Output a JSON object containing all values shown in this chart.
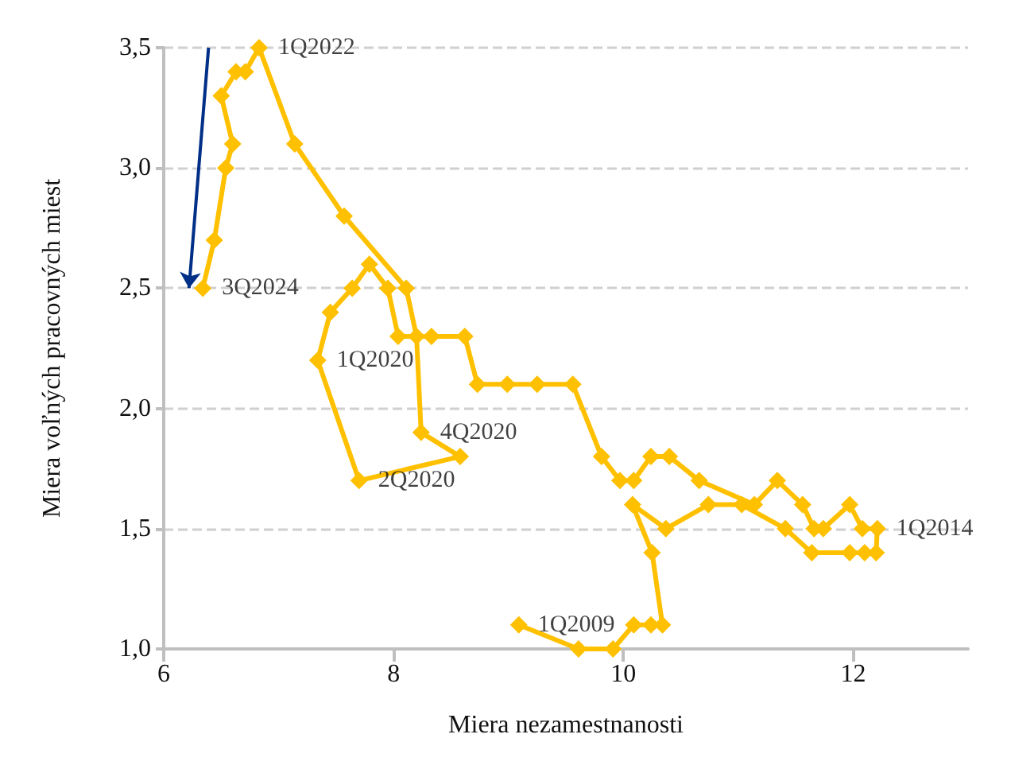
{
  "chart_data": {
    "type": "line",
    "xlabel": "Miera nezamestnanosti",
    "ylabel": "Miera voľných pracovných miest",
    "xlim": [
      6,
      13
    ],
    "xticks": [
      6,
      8,
      10,
      12
    ],
    "ylim": [
      1,
      3.5
    ],
    "yticks": [
      {
        "value": 1,
        "label": "1,0"
      },
      {
        "value": 1.5,
        "label": "1,5"
      },
      {
        "value": 2,
        "label": "2,0"
      },
      {
        "value": 2.5,
        "label": "2,5"
      },
      {
        "value": 3,
        "label": "3,0"
      },
      {
        "value": 3.5,
        "label": "3,5"
      }
    ],
    "grid": "y",
    "marker": "diamond",
    "line_style": "solid",
    "series": [
      {
        "color": "#ffc000",
        "x": [
          9.09,
          9.61,
          9.91,
          10.09,
          10.24,
          10.34,
          10.25,
          10.08,
          10.37,
          10.74,
          11.03,
          11.41,
          11.64,
          11.97,
          12.1,
          12.2,
          12.21,
          12.08,
          11.97,
          11.74,
          11.66,
          11.56,
          11.34,
          11.14,
          10.66,
          10.4,
          10.24,
          10.09,
          9.97,
          9.81,
          9.56,
          9.25,
          8.99,
          8.73,
          8.62,
          8.33,
          8.04,
          7.95,
          7.79,
          7.64,
          7.45,
          7.34,
          7.7,
          8.58,
          8.24,
          8.2,
          8.11,
          7.57,
          7.14,
          6.83,
          6.71,
          6.63,
          6.5,
          6.6,
          6.54,
          6.44,
          6.34
        ],
        "values": [
          1.1,
          1.0,
          1.0,
          1.1,
          1.1,
          1.1,
          1.4,
          1.6,
          1.5,
          1.6,
          1.6,
          1.5,
          1.4,
          1.4,
          1.4,
          1.4,
          1.5,
          1.5,
          1.6,
          1.5,
          1.5,
          1.6,
          1.7,
          1.6,
          1.7,
          1.8,
          1.8,
          1.7,
          1.7,
          1.8,
          2.1,
          2.1,
          2.1,
          2.1,
          2.3,
          2.3,
          2.3,
          2.5,
          2.6,
          2.5,
          2.4,
          2.2,
          1.7,
          1.8,
          1.9,
          2.3,
          2.5,
          2.8,
          3.1,
          3.5,
          3.4,
          3.4,
          3.3,
          3.1,
          3.0,
          2.7,
          2.5
        ]
      }
    ],
    "annotations": [
      {
        "text": "1Q2022",
        "x": 6.83,
        "y": 3.5
      },
      {
        "text": "3Q2024",
        "x": 6.34,
        "y": 2.5
      },
      {
        "text": "1Q2020",
        "x": 7.34,
        "y": 2.2
      },
      {
        "text": "4Q2020",
        "x": 8.24,
        "y": 1.9
      },
      {
        "text": "2Q2020",
        "x": 7.7,
        "y": 1.7
      },
      {
        "text": "1Q2009",
        "x": 9.09,
        "y": 1.1
      },
      {
        "text": "1Q2014",
        "x": 12.21,
        "y": 1.5
      }
    ]
  }
}
